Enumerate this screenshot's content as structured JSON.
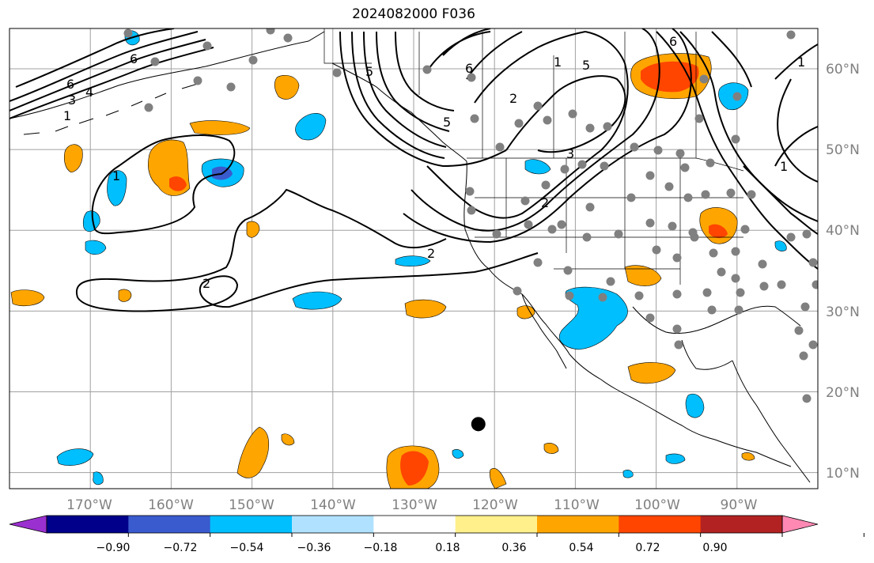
{
  "title": "2024082000 F036",
  "map": {
    "lon_range": [
      -180,
      -80
    ],
    "lat_range": [
      8,
      65
    ],
    "grid": true,
    "lon_ticks": [
      "170°W",
      "160°W",
      "150°W",
      "140°W",
      "130°W",
      "120°W",
      "110°W",
      "100°W",
      "90°W"
    ],
    "lat_ticks": [
      "10°N",
      "20°N",
      "30°N",
      "40°N",
      "50°N",
      "60°N"
    ],
    "contour_labels": [
      "6",
      "4",
      "3",
      "1",
      "6",
      "5",
      "6",
      "2",
      "1",
      "5",
      "3",
      "2",
      "5",
      "6",
      "1",
      "1",
      "2",
      "1",
      "2"
    ],
    "marker": {
      "lon": -122,
      "lat": 16
    }
  },
  "colorbar": {
    "tick_labels": [
      "−0.90",
      "−0.72",
      "−0.54",
      "−0.36",
      "−0.18",
      "0.18",
      "0.36",
      "0.54",
      "0.72",
      "0.90"
    ],
    "colors": [
      "#9b30d0",
      "#00008b",
      "#3a5bcd",
      "#00bfff",
      "#b0e2ff",
      "#ffffff",
      "#fff08c",
      "#ffa500",
      "#ff4500",
      "#b22222",
      "#ff89b3"
    ]
  },
  "colors": {
    "land_outline": "#000000",
    "grid": "#a0a0a0",
    "station_dots": "#808080"
  }
}
